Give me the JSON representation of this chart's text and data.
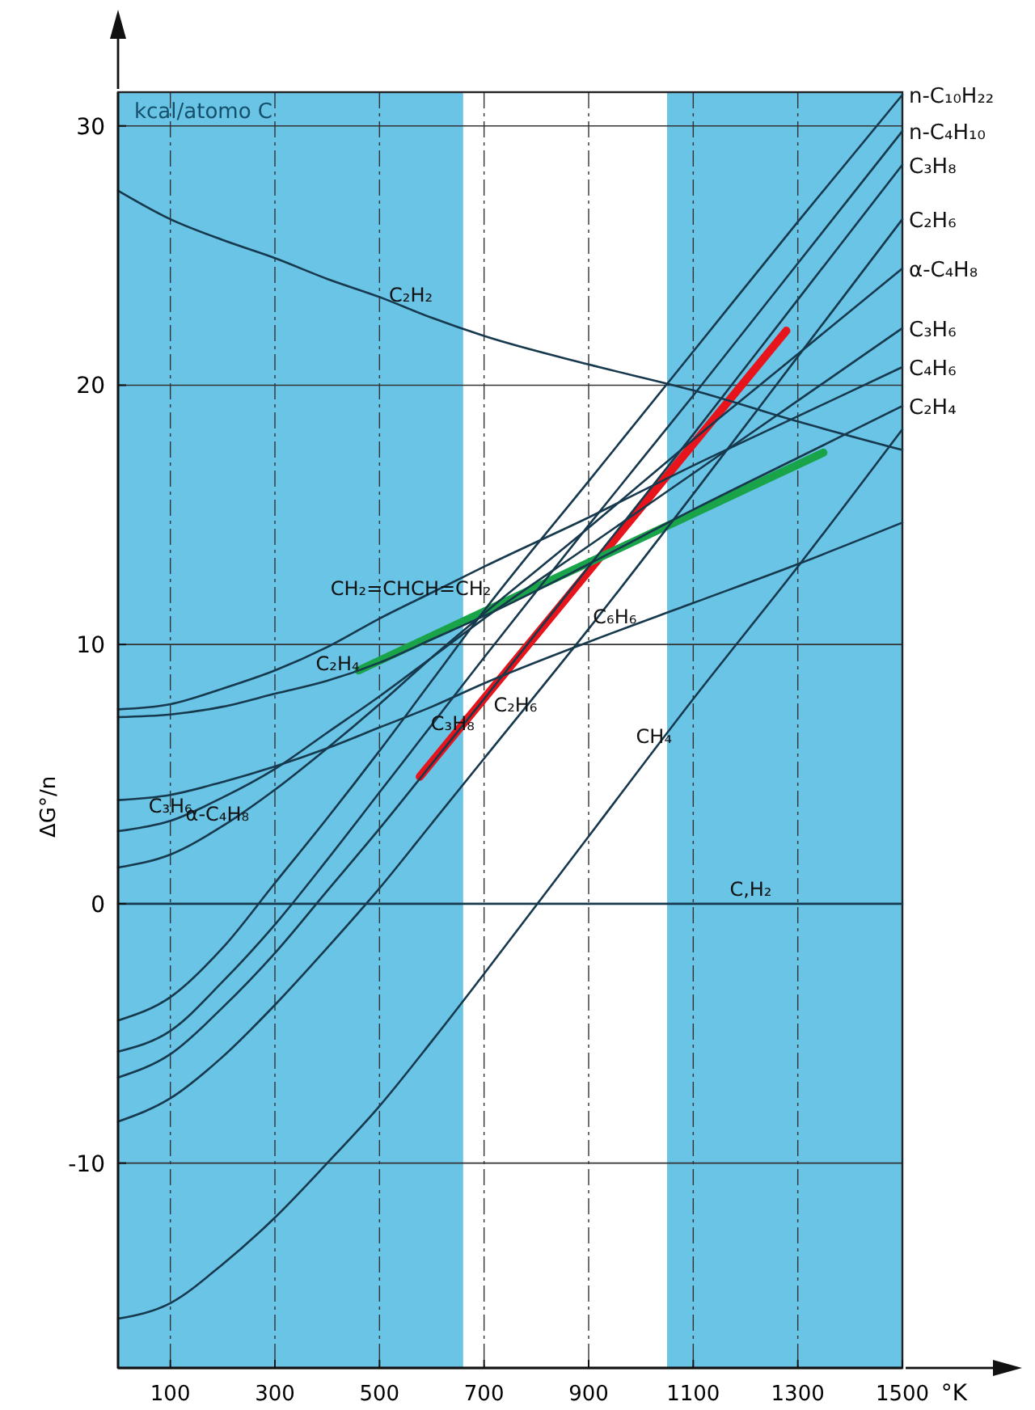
{
  "chart_data": {
    "type": "line",
    "xlabel": "°K",
    "ylabel": "ΔG°/n",
    "x": [
      0,
      100,
      200,
      300,
      400,
      500,
      600,
      700,
      900,
      1100,
      1300,
      1500
    ],
    "xlim": [
      0,
      1500
    ],
    "ylim": [
      -17.9,
      31.3
    ],
    "xticks": [
      100,
      300,
      500,
      700,
      900,
      1100,
      1300,
      1500
    ],
    "yticks": [
      -10,
      0,
      10,
      20,
      30
    ],
    "grid": true,
    "marker": "none",
    "line_style": "solid",
    "bands": [
      {
        "axis": "x",
        "from": 0,
        "to": 660,
        "color": "#6ac4e6"
      },
      {
        "axis": "x",
        "from": 1050,
        "to": 1500,
        "color": "#6ac4e6"
      }
    ],
    "series": [
      {
        "color": "#17394d",
        "values": [
          27.5,
          26.4,
          25.6,
          24.9,
          24.1,
          23.4,
          22.6,
          21.9,
          20.8,
          19.8,
          18.6,
          17.5
        ]
      },
      {
        "name": "n-C₁₀H₂₂",
        "color": "#17394d",
        "values": [
          -4.5,
          -3.6,
          -1.7,
          0.8,
          3.3,
          5.9,
          8.6,
          11.3,
          16.3,
          21.3,
          26.3,
          31.2
        ]
      },
      {
        "name": "n-C₄H₁₀",
        "color": "#17394d",
        "values": [
          -5.7,
          -4.9,
          -3.0,
          -0.8,
          1.7,
          4.3,
          6.9,
          9.5,
          14.6,
          19.6,
          24.7,
          29.8
        ]
      },
      {
        "name": "C₃H₈",
        "color": "#17394d",
        "values": [
          -6.7,
          -5.8,
          -4.0,
          -1.9,
          0.5,
          2.9,
          5.4,
          7.9,
          13.0,
          18.1,
          23.3,
          28.5
        ]
      },
      {
        "name": "C₂H₆",
        "color": "#17394d",
        "values": [
          -8.4,
          -7.5,
          -5.9,
          -3.9,
          -1.7,
          0.6,
          3.1,
          5.6,
          10.6,
          15.8,
          21.1,
          26.4
        ]
      },
      {
        "name": "α-C₄H₈",
        "color": "#17394d",
        "values": [
          1.4,
          1.9,
          3.0,
          4.4,
          6.0,
          7.7,
          9.5,
          11.2,
          14.5,
          17.9,
          21.2,
          24.5
        ]
      },
      {
        "name": "C₃H₆",
        "color": "#17394d",
        "values": [
          2.8,
          3.2,
          4.1,
          5.2,
          6.6,
          8.0,
          9.5,
          11.0,
          13.8,
          16.6,
          19.4,
          22.2
        ]
      },
      {
        "name": "C₄H₆",
        "color": "#17394d",
        "values": [
          7.5,
          7.7,
          8.3,
          9.0,
          9.9,
          11.0,
          12.0,
          13.0,
          14.9,
          16.9,
          18.8,
          20.7
        ]
      },
      {
        "name": "C₂H₄",
        "color": "#17394d",
        "values": [
          7.2,
          7.3,
          7.6,
          8.1,
          8.6,
          9.3,
          10.2,
          11.1,
          13.1,
          15.2,
          17.2,
          19.2
        ]
      },
      {
        "color": "#17394d",
        "values": [
          4.0,
          4.2,
          4.7,
          5.3,
          6.0,
          6.8,
          7.6,
          8.5,
          10.1,
          11.6,
          13.1,
          14.7
        ]
      },
      {
        "color": "#17394d",
        "values": [
          -16.0,
          -15.4,
          -13.9,
          -12.1,
          -10.0,
          -7.8,
          -5.3,
          -2.7,
          2.6,
          7.9,
          13.0,
          18.3
        ]
      },
      {
        "color": "#17394d",
        "x": [
          0,
          1500
        ],
        "values": [
          0,
          0
        ]
      },
      {
        "color": "#e8141c",
        "x": [
          577,
          1278
        ],
        "values": [
          4.9,
          22.1
        ]
      },
      {
        "color": "#1aa44a",
        "x": [
          460,
          1349
        ],
        "values": [
          9.0,
          17.4
        ]
      }
    ],
    "annotations": [
      "kcal/atomo C",
      {
        "text": "C₂H₂",
        "x": 560,
        "y": 22.9
      },
      {
        "text": "CH₂=CHCH=CH₂",
        "x": 560,
        "y": 11.6
      },
      {
        "text": "C₂H₄",
        "x": 420,
        "y": 8.7
      },
      {
        "text": "C₃H₆",
        "x": 100,
        "y": 3.2
      },
      {
        "text": "α-C₄H₈",
        "x": 190,
        "y": 2.9
      },
      {
        "text": "C₃H₈",
        "x": 640,
        "y": 6.4
      },
      {
        "text": "C₂H₆",
        "x": 760,
        "y": 7.1
      },
      {
        "text": "C₆H₆",
        "x": 950,
        "y": 10.5
      },
      {
        "text": "CH₄",
        "x": 1025,
        "y": 5.9
      },
      {
        "text": "C,H₂",
        "x": 1210,
        "y": 0
      }
    ]
  }
}
